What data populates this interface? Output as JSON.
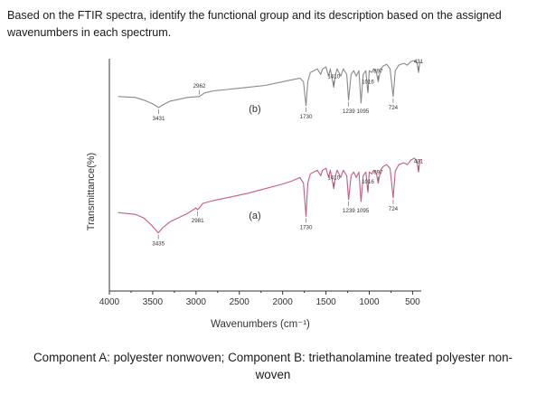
{
  "question": "Based on the FTIR spectra, identify the functional group and its description based on the assigned wavenumbers in each spectrum.",
  "caption": "Component A: polyester nonwoven; Component B: triethanolamine treated polyester non-woven",
  "chart_data": {
    "type": "line",
    "title": "",
    "xlabel": "Wavenumbers (cm⁻¹)",
    "ylabel": "Transmittance(%)",
    "xlim": [
      4000,
      400
    ],
    "x_reversed": true,
    "grid": false,
    "xticks": [
      "4000",
      "3500",
      "3000",
      "2500",
      "2000",
      "1500",
      "1000",
      "500"
    ],
    "xtick_values": [
      4000,
      3500,
      3000,
      2500,
      2000,
      1500,
      1000,
      500
    ],
    "colors": {
      "a": "#c45c86",
      "b": "#8a8a8a"
    },
    "series": [
      {
        "name": "(a)",
        "points": [
          [
            3900,
            40
          ],
          [
            3700,
            38
          ],
          [
            3600,
            34
          ],
          [
            3520,
            27
          ],
          [
            3435,
            18
          ],
          [
            3380,
            24
          ],
          [
            3300,
            30
          ],
          [
            3100,
            39
          ],
          [
            3000,
            45
          ],
          [
            2981,
            43
          ],
          [
            2920,
            50
          ],
          [
            2800,
            53
          ],
          [
            2600,
            57
          ],
          [
            2400,
            61
          ],
          [
            2200,
            66
          ],
          [
            2000,
            71
          ],
          [
            1900,
            74
          ],
          [
            1800,
            78
          ],
          [
            1760,
            72
          ],
          [
            1730,
            36
          ],
          [
            1710,
            72
          ],
          [
            1680,
            82
          ],
          [
            1600,
            86
          ],
          [
            1560,
            80
          ],
          [
            1540,
            86
          ],
          [
            1500,
            88
          ],
          [
            1470,
            78
          ],
          [
            1450,
            86
          ],
          [
            1410,
            66
          ],
          [
            1390,
            80
          ],
          [
            1370,
            86
          ],
          [
            1330,
            78
          ],
          [
            1300,
            86
          ],
          [
            1260,
            80
          ],
          [
            1239,
            54
          ],
          [
            1210,
            80
          ],
          [
            1180,
            84
          ],
          [
            1150,
            78
          ],
          [
            1120,
            84
          ],
          [
            1095,
            52
          ],
          [
            1070,
            80
          ],
          [
            1040,
            84
          ],
          [
            1016,
            62
          ],
          [
            1000,
            84
          ],
          [
            970,
            82
          ],
          [
            950,
            86
          ],
          [
            920,
            83
          ],
          [
            897,
            72
          ],
          [
            870,
            86
          ],
          [
            840,
            90
          ],
          [
            800,
            92
          ],
          [
            760,
            88
          ],
          [
            724,
            56
          ],
          [
            700,
            85
          ],
          [
            660,
            92
          ],
          [
            600,
            94
          ],
          [
            560,
            92
          ],
          [
            520,
            97
          ],
          [
            480,
            99
          ],
          [
            450,
            96
          ],
          [
            431,
            84
          ],
          [
            420,
            94
          ],
          [
            410,
            98
          ]
        ],
        "peak_labels": [
          {
            "x": 3435,
            "label": "3435"
          },
          {
            "x": 2981,
            "label": "2981"
          },
          {
            "x": 1730,
            "label": "1730"
          },
          {
            "x": 1410,
            "label": "1410"
          },
          {
            "x": 1239,
            "label": "1239 1095"
          },
          {
            "x": 1016,
            "label": "1016"
          },
          {
            "x": 897,
            "label": "897"
          },
          {
            "x": 724,
            "label": "724"
          },
          {
            "x": 431,
            "label": "431"
          }
        ]
      },
      {
        "name": "(b)",
        "points": [
          [
            3900,
            62
          ],
          [
            3700,
            61
          ],
          [
            3600,
            58
          ],
          [
            3500,
            54
          ],
          [
            3431,
            50
          ],
          [
            3380,
            53
          ],
          [
            3300,
            57
          ],
          [
            3100,
            61
          ],
          [
            2962,
            62
          ],
          [
            2900,
            66
          ],
          [
            2800,
            68
          ],
          [
            2600,
            70
          ],
          [
            2400,
            72
          ],
          [
            2200,
            74
          ],
          [
            2000,
            78
          ],
          [
            1900,
            80
          ],
          [
            1800,
            82
          ],
          [
            1760,
            78
          ],
          [
            1730,
            52
          ],
          [
            1710,
            78
          ],
          [
            1680,
            88
          ],
          [
            1600,
            92
          ],
          [
            1560,
            86
          ],
          [
            1540,
            92
          ],
          [
            1500,
            94
          ],
          [
            1470,
            84
          ],
          [
            1450,
            92
          ],
          [
            1410,
            72
          ],
          [
            1390,
            86
          ],
          [
            1370,
            92
          ],
          [
            1330,
            84
          ],
          [
            1300,
            92
          ],
          [
            1260,
            86
          ],
          [
            1239,
            58
          ],
          [
            1210,
            86
          ],
          [
            1180,
            90
          ],
          [
            1150,
            84
          ],
          [
            1120,
            90
          ],
          [
            1095,
            55
          ],
          [
            1070,
            86
          ],
          [
            1040,
            90
          ],
          [
            1016,
            66
          ],
          [
            1000,
            90
          ],
          [
            970,
            88
          ],
          [
            950,
            92
          ],
          [
            920,
            89
          ],
          [
            897,
            78
          ],
          [
            870,
            92
          ],
          [
            840,
            95
          ],
          [
            800,
            97
          ],
          [
            760,
            92
          ],
          [
            724,
            62
          ],
          [
            700,
            90
          ],
          [
            660,
            96
          ],
          [
            600,
            98
          ],
          [
            560,
            96
          ],
          [
            520,
            100
          ],
          [
            480,
            101
          ],
          [
            450,
            99
          ],
          [
            431,
            88
          ],
          [
            420,
            97
          ],
          [
            410,
            100
          ]
        ],
        "peak_labels": [
          {
            "x": 3431,
            "label": "3431"
          },
          {
            "x": 2962,
            "label": "2962"
          },
          {
            "x": 1730,
            "label": "1730"
          },
          {
            "x": 1410,
            "label": "1410"
          },
          {
            "x": 1239,
            "label": "1239 1095"
          },
          {
            "x": 1016,
            "label": "1016"
          },
          {
            "x": 897,
            "label": "897"
          },
          {
            "x": 724,
            "label": "724"
          },
          {
            "x": 431,
            "label": "431"
          }
        ]
      }
    ]
  }
}
